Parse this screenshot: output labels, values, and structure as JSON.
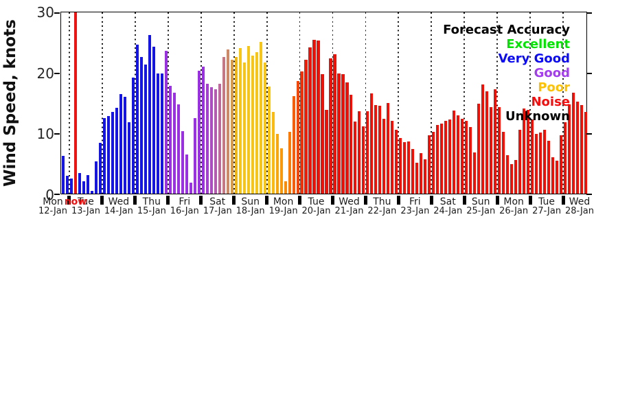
{
  "chart_data": {
    "type": "bar",
    "title": "",
    "ylabel": "Wind Speed, knots",
    "ylim": [
      0,
      30
    ],
    "yticks": [
      0,
      10,
      20,
      30
    ],
    "grid": "vertical dotted lines at each day boundary",
    "now_label": "now",
    "now_color": "#f01111",
    "now_index": 3,
    "bars_per_day": 8,
    "first_day_bar_count": 2,
    "day_sections": [
      {
        "day": "Mon",
        "date": "12-Jan"
      },
      {
        "day": "Tue",
        "date": "13-Jan"
      },
      {
        "day": "Wed",
        "date": "14-Jan"
      },
      {
        "day": "Thu",
        "date": "15-Jan"
      },
      {
        "day": "Fri",
        "date": "16-Jan"
      },
      {
        "day": "Sat",
        "date": "17-Jan"
      },
      {
        "day": "Sun",
        "date": "18-Jan"
      },
      {
        "day": "Mon",
        "date": "19-Jan"
      },
      {
        "day": "Tue",
        "date": "20-Jan"
      },
      {
        "day": "Wed",
        "date": "21-Jan"
      },
      {
        "day": "Thu",
        "date": "22-Jan"
      },
      {
        "day": "Fri",
        "date": "23-Jan"
      },
      {
        "day": "Sat",
        "date": "24-Jan"
      },
      {
        "day": "Sun",
        "date": "25-Jan"
      },
      {
        "day": "Mon",
        "date": "26-Jan"
      },
      {
        "day": "Tue",
        "date": "27-Jan"
      },
      {
        "day": "Wed",
        "date": "28-Jan"
      }
    ],
    "values": [
      6.2,
      2.9,
      2.5,
      30,
      3.4,
      2.0,
      3.0,
      0.4,
      5.3,
      8.4,
      12.4,
      12.7,
      13.4,
      14.1,
      16.4,
      15.9,
      11.7,
      19.1,
      24.5,
      22.4,
      21.2,
      26.0,
      24.1,
      19.7,
      19.7,
      23.5,
      17.7,
      16.6,
      14.7,
      10.3,
      6.4,
      1.8,
      12.4,
      20.2,
      20.9,
      18.1,
      17.5,
      17.1,
      18.1,
      22.4,
      23.7,
      22.0,
      22.5,
      23.9,
      21.5,
      24.3,
      22.7,
      23.2,
      24.9,
      21.5,
      17.6,
      13.4,
      9.8,
      7.5,
      2.0,
      10.1,
      16.0,
      18.5,
      20.1,
      22.0,
      24.0,
      25.3,
      25.1,
      19.6,
      13.8,
      22.2,
      22.9,
      19.7,
      19.6,
      18.3,
      16.2,
      11.9,
      13.5,
      11.1,
      13.5,
      16.5,
      14.5,
      14.4,
      12.3,
      14.9,
      12.0,
      10.5,
      9.1,
      8.5,
      8.6,
      7.3,
      5.1,
      6.6,
      5.6,
      9.6,
      10.2,
      11.3,
      11.5,
      12.0,
      12.2,
      13.7,
      12.9,
      12.3,
      12.0,
      10.9,
      6.8,
      14.8,
      17.9,
      16.8,
      14.2,
      17.1,
      14.2,
      10.2,
      6.3,
      4.9,
      5.5,
      10.5,
      14.0,
      13.8,
      12.2,
      9.8,
      10.0,
      10.5,
      8.7,
      6.0,
      5.4,
      9.6,
      11.7,
      14.7,
      16.6,
      15.1,
      14.5,
      13.4
    ],
    "colors": [
      "#1414e6",
      "#1414e6",
      "#1414e6",
      "#f01111",
      "#1414e6",
      "#1414e6",
      "#1414e6",
      "#1414e6",
      "#1414e6",
      "#1414e6",
      "#1414e6",
      "#1414e6",
      "#1414e6",
      "#1414e6",
      "#1414e6",
      "#1414e6",
      "#1414e6",
      "#1414e6",
      "#1414e6",
      "#1414e6",
      "#1414e6",
      "#1414e6",
      "#1414e6",
      "#1414e6",
      "#1414e6",
      "#9b2fe3",
      "#9b2fe3",
      "#9b2fe3",
      "#9b2fe3",
      "#9b2fe3",
      "#9b2fe3",
      "#9b2fe3",
      "#9b2fe3",
      "#9b2fe3",
      "#9b2fe3",
      "#a53dd3",
      "#ae4bc2",
      "#b659b0",
      "#be689b",
      "#c77784",
      "#cf8866",
      "#d99a46",
      "#efb511",
      "#f6c516",
      "#f6c516",
      "#f6c516",
      "#f6c516",
      "#f6c516",
      "#f6c516",
      "#f6c516",
      "#fcc70a",
      "#fcba0c",
      "#fca708",
      "#fc9804",
      "#fc8a02",
      "#fc7a04",
      "#fa5c05",
      "#f84505",
      "#f53004",
      "#f21d05",
      "#ef1307",
      "#ee1108",
      "#ee1108",
      "#ee1108",
      "#ee1108",
      "#ee1108",
      "#ee1108",
      "#ee1108",
      "#ee1108",
      "#ee1108",
      "#ee1108",
      "#ee1108",
      "#ee1108",
      "#ee1108",
      "#ee1108",
      "#ee1108",
      "#ee1108",
      "#ee1108",
      "#ee1108",
      "#ee1108",
      "#ee1108",
      "#ee1108",
      "#ee1108",
      "#ee1108",
      "#ee1108",
      "#ee1108",
      "#ee1108",
      "#ee1108",
      "#ee1108",
      "#ee1108",
      "#ee1108",
      "#ee1108",
      "#ee1108",
      "#ee1108",
      "#ee1108",
      "#ee1108",
      "#ee1108",
      "#ee1108",
      "#ee1108",
      "#ee1108",
      "#ee1108",
      "#ee1108",
      "#ee1108",
      "#ee1108",
      "#ee1108",
      "#ee1108",
      "#ee1108",
      "#ee1108",
      "#ee1108",
      "#ee1108",
      "#ee1108",
      "#ee1108",
      "#ee1108",
      "#ee1108",
      "#ee1108",
      "#ee1108",
      "#ee1108",
      "#ee1108",
      "#ee1108",
      "#ee1108",
      "#ee1108",
      "#ee1108",
      "#ee1108",
      "#ee1108",
      "#ee1108",
      "#ee1108",
      "#ee1108",
      "#ee1108"
    ],
    "legend": {
      "title": "Forecast Accuracy",
      "title_color": "#000000",
      "position": "top-right",
      "entries": [
        {
          "label": "Excellent",
          "color": "#00e400"
        },
        {
          "label": "Very Good",
          "color": "#0b0bf5"
        },
        {
          "label": "Good",
          "color": "#a43cf0"
        },
        {
          "label": "Poor",
          "color": "#fdc103"
        },
        {
          "label": "Noise",
          "color": "#f50d0d"
        },
        {
          "label": "Unknown",
          "color": "#000000"
        }
      ]
    }
  }
}
